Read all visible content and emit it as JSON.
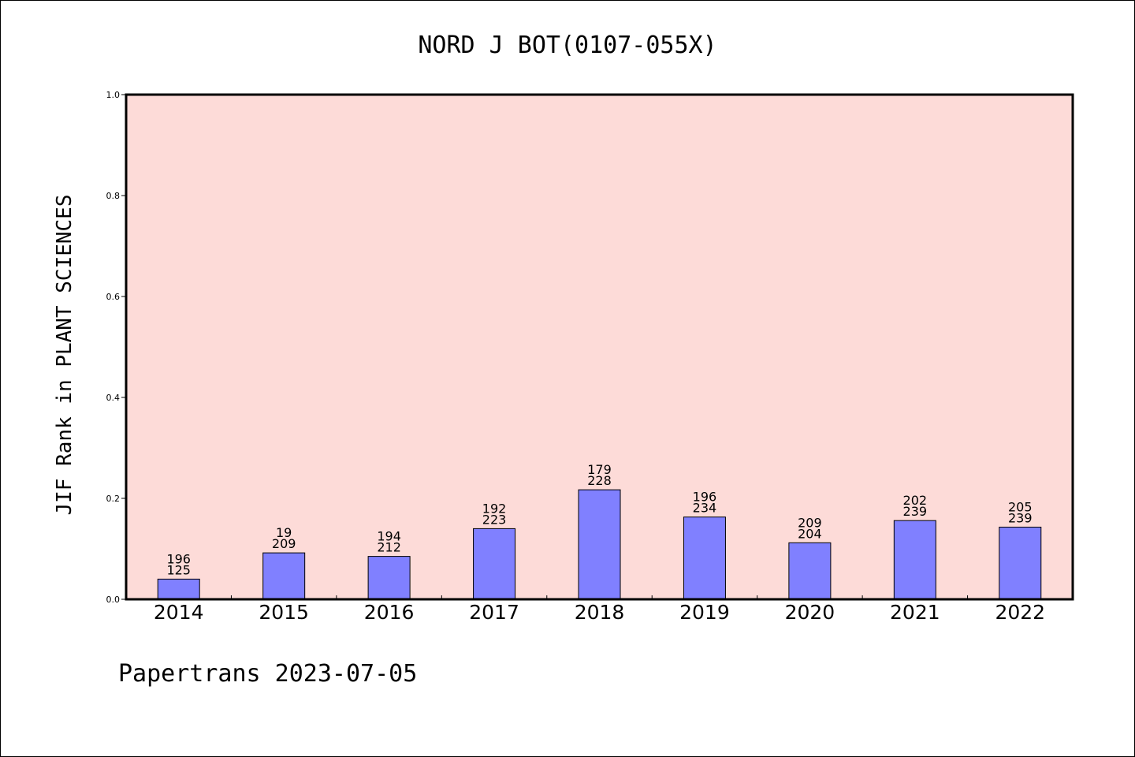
{
  "chart_data": {
    "type": "bar",
    "title": "NORD J BOT(0107-055X)",
    "xlabel": "",
    "ylabel": "JIF Rank in PLANT SCIENCES",
    "ylim": [
      0,
      1.0
    ],
    "yticks": [
      "0.0",
      "0.2",
      "0.4",
      "0.6",
      "0.8",
      "1.0"
    ],
    "grid": false,
    "categories": [
      "2014",
      "2015",
      "2016",
      "2017",
      "2018",
      "2019",
      "2020",
      "2021",
      "2022"
    ],
    "values": [
      0.04,
      0.092,
      0.085,
      0.14,
      0.217,
      0.163,
      0.112,
      0.156,
      0.143
    ],
    "labels_top": [
      "196",
      "19",
      "194",
      "192",
      "179",
      "196",
      "209",
      "202",
      "205"
    ],
    "labels_bottom": [
      "125",
      "209",
      "212",
      "223",
      "228",
      "234",
      "204",
      "239",
      "239"
    ],
    "colors": {
      "plot_background": "#fddbd8",
      "bar_fill": "#8080ff",
      "bar_edge": "#000000"
    }
  },
  "footer": "Papertrans 2023-07-05"
}
